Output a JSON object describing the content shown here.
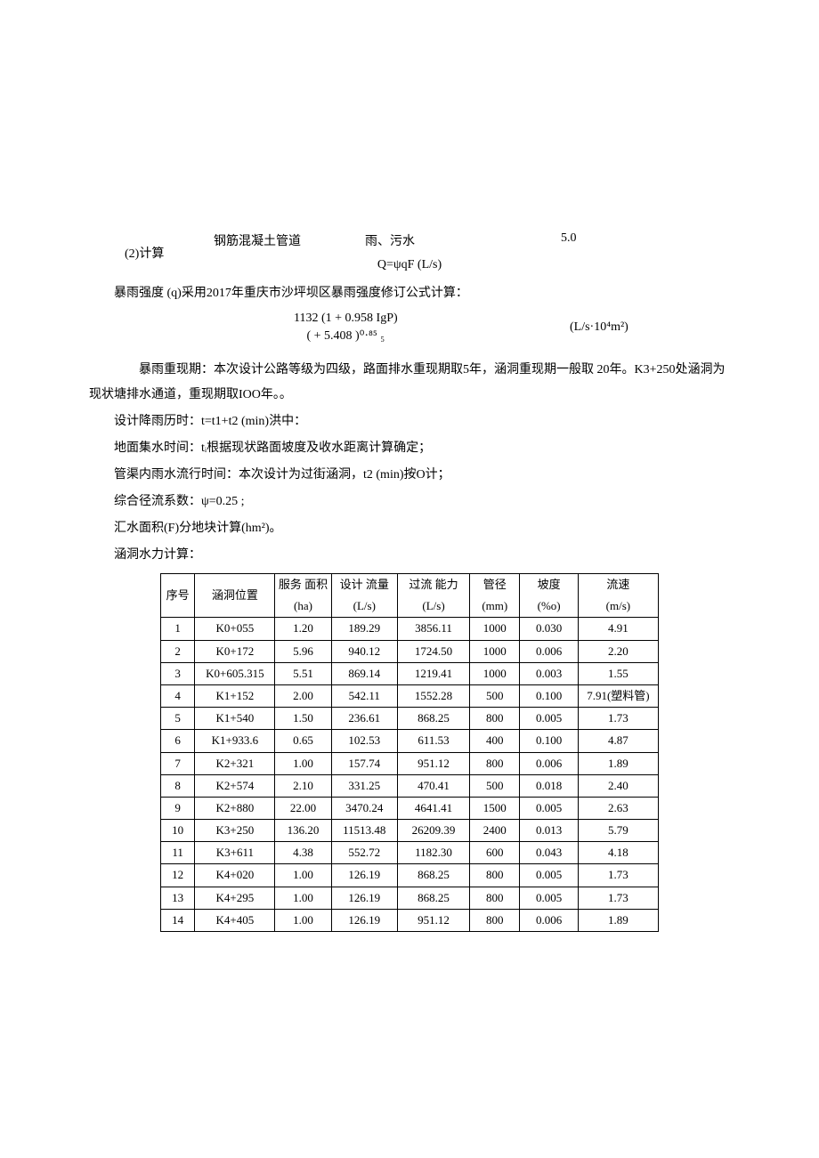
{
  "pipe_row": {
    "material": "钢筋混凝土管道",
    "type": "雨、污水",
    "value": "5.0"
  },
  "calc_heading": "(2)计算",
  "formula_main": "Q=ψqF (L/s)",
  "intensity_line": "暴雨强度 (q)采用2017年重庆市沙坪坝区暴雨强度修订公式计算：",
  "formula": {
    "numerator": "1132 (1 + 0.958 IgP)",
    "denominator": "( + 5.408 )⁰·⁸⁵   ₅",
    "unit": "(L/s·10⁴m²)"
  },
  "return_period_para": "暴雨重现期：本次设计公路等级为四级，路面排水重现期取5年，涵洞重现期一般取    20年。K3+250处涵洞为现状塘排水通道，重现期取IOO年。。",
  "lines": [
    "设计降雨历时：t=t1+t2 (min)洪中：",
    "地面集水时间：tᵢ根据现状路面坡度及收水距离计算确定；",
    "管渠内雨水流行时间：本次设计为过街涵洞，t2 (min)按O计；",
    "综合径流系数：ψ=0.25 ;",
    "汇水面积(F)分地块计算(hm²)。",
    "涵洞水力计算："
  ],
  "table": {
    "headers_top": [
      "序号",
      "涵洞位置",
      "服务 面积",
      "设计 流量",
      "过流 能力",
      "管径",
      "坡度",
      "流速"
    ],
    "headers_units": [
      "(ha)",
      "(L/s)",
      "(L/s)",
      "(mm)",
      "(%o)",
      "(m/s)"
    ],
    "rows": [
      [
        "1",
        "K0+055",
        "1.20",
        "189.29",
        "3856.11",
        "1000",
        "0.030",
        "4.91"
      ],
      [
        "2",
        "K0+172",
        "5.96",
        "940.12",
        "1724.50",
        "1000",
        "0.006",
        "2.20"
      ],
      [
        "3",
        "K0+605.315",
        "5.51",
        "869.14",
        "1219.41",
        "1000",
        "0.003",
        "1.55"
      ],
      [
        "4",
        "K1+152",
        "2.00",
        "542.11",
        "1552.28",
        "500",
        "0.100",
        "7.91(塑料管)"
      ],
      [
        "5",
        "K1+540",
        "1.50",
        "236.61",
        "868.25",
        "800",
        "0.005",
        "1.73"
      ],
      [
        "6",
        "K1+933.6",
        "0.65",
        "102.53",
        "611.53",
        "400",
        "0.100",
        "4.87"
      ],
      [
        "7",
        "K2+321",
        "1.00",
        "157.74",
        "951.12",
        "800",
        "0.006",
        "1.89"
      ],
      [
        "8",
        "K2+574",
        "2.10",
        "331.25",
        "470.41",
        "500",
        "0.018",
        "2.40"
      ],
      [
        "9",
        "K2+880",
        "22.00",
        "3470.24",
        "4641.41",
        "1500",
        "0.005",
        "2.63"
      ],
      [
        "10",
        "K3+250",
        "136.20",
        "11513.48",
        "26209.39",
        "2400",
        "0.013",
        "5.79"
      ],
      [
        "11",
        "K3+611",
        "4.38",
        "552.72",
        "1182.30",
        "600",
        "0.043",
        "4.18"
      ],
      [
        "12",
        "K4+020",
        "1.00",
        "126.19",
        "868.25",
        "800",
        "0.005",
        "1.73"
      ],
      [
        "13",
        "K4+295",
        "1.00",
        "126.19",
        "868.25",
        "800",
        "0.005",
        "1.73"
      ],
      [
        "14",
        "K4+405",
        "1.00",
        "126.19",
        "951.12",
        "800",
        "0.006",
        "1.89"
      ]
    ]
  }
}
